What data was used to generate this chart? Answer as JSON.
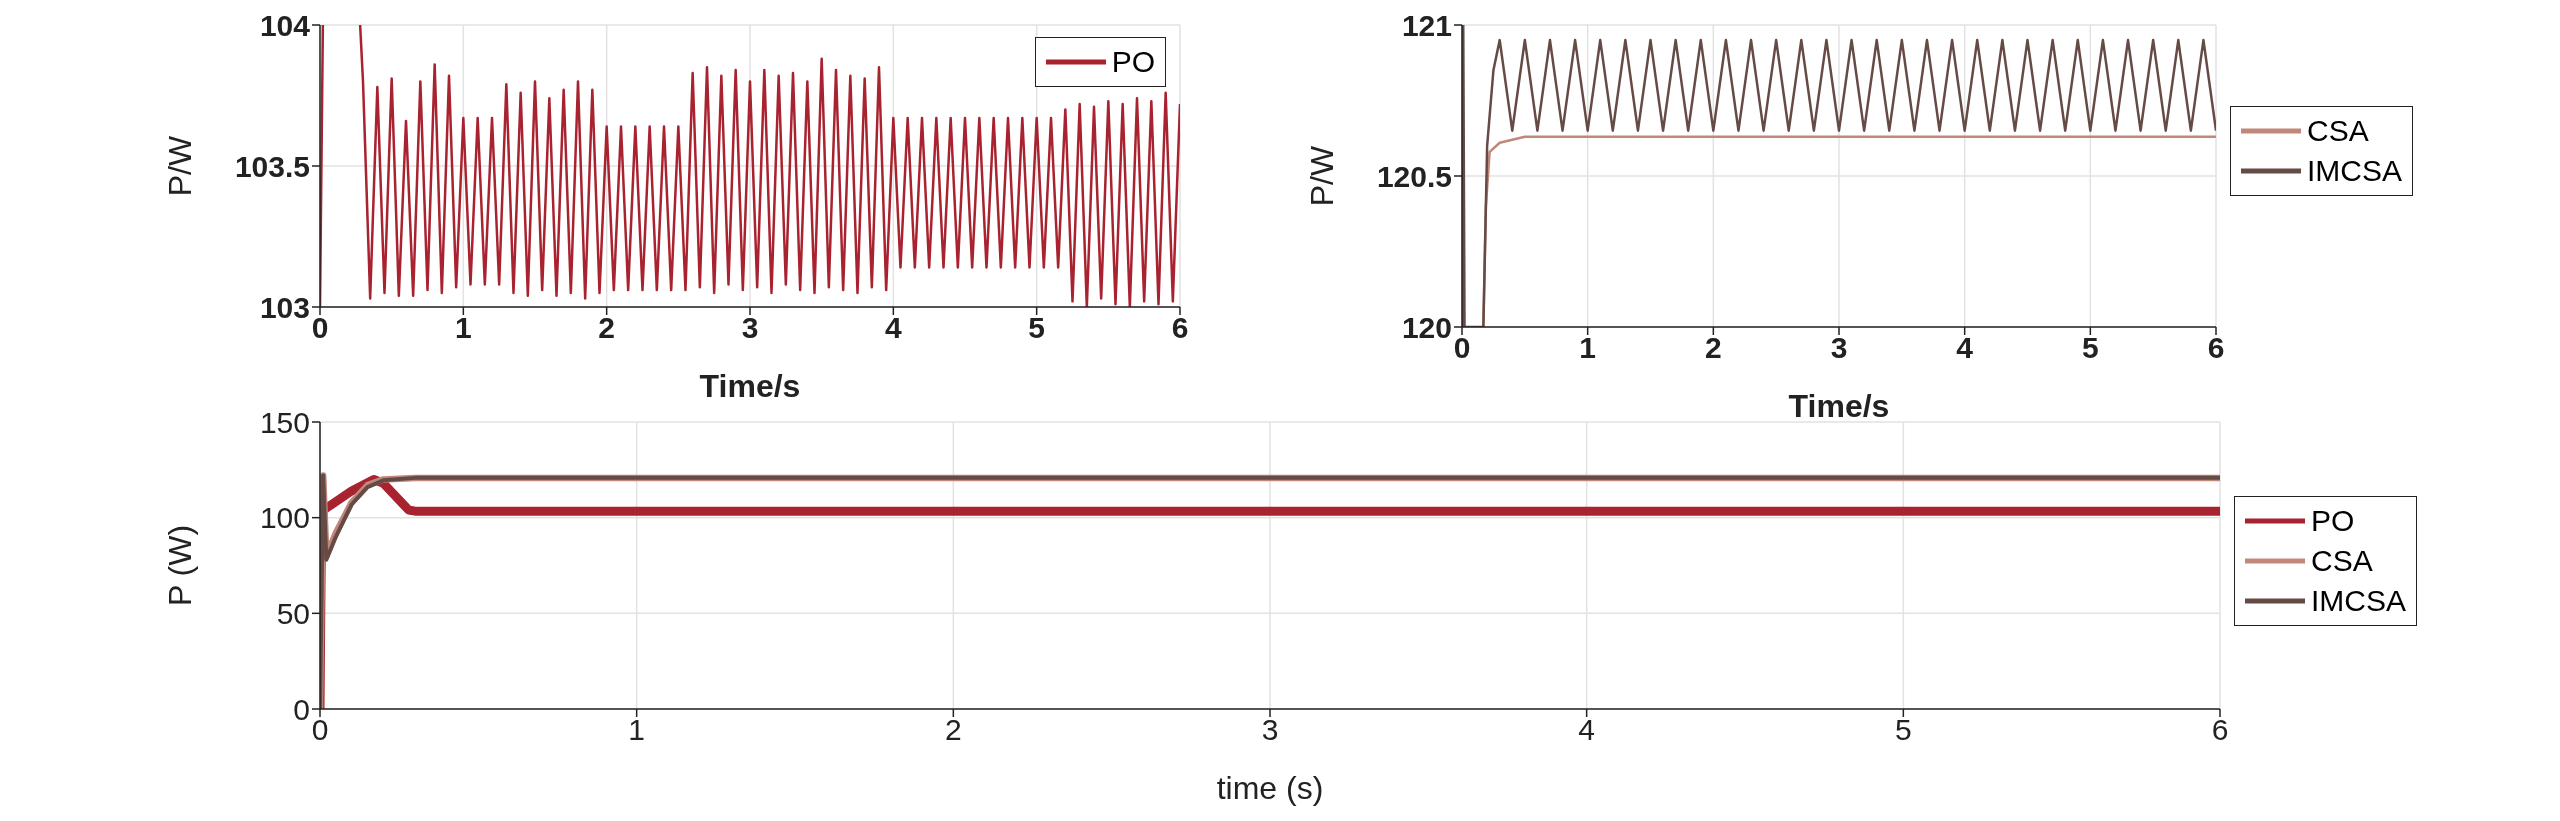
{
  "chart_data": [
    {
      "type": "line",
      "xlabel": "Time/s",
      "ylabel": "P/W",
      "xlim": [
        0,
        6
      ],
      "xticks": [
        0,
        1,
        2,
        3,
        4,
        5,
        6
      ],
      "ylim": [
        103,
        104
      ],
      "yticks": [
        103,
        103.5,
        104
      ],
      "grid": true,
      "legend": "top right",
      "series": [
        {
          "name": "PO",
          "color": "#a8232f",
          "x": [
            0,
            0.02,
            0.1,
            0.28,
            0.3,
            0.35,
            0.4,
            0.45,
            0.5,
            0.55,
            0.6,
            0.65,
            0.7,
            0.75,
            0.8,
            0.85,
            0.9,
            0.95,
            1.0,
            1.05,
            1.1,
            1.15,
            1.2,
            1.25,
            1.3,
            1.35,
            1.4,
            1.45,
            1.5,
            1.55,
            1.6,
            1.65,
            1.7,
            1.75,
            1.8,
            1.85,
            1.9,
            1.95,
            2.0,
            2.05,
            2.1,
            2.15,
            2.2,
            2.25,
            2.3,
            2.35,
            2.4,
            2.45,
            2.5,
            2.55,
            2.6,
            2.65,
            2.7,
            2.75,
            2.8,
            2.85,
            2.9,
            2.95,
            3.0,
            3.05,
            3.1,
            3.15,
            3.2,
            3.25,
            3.3,
            3.35,
            3.4,
            3.45,
            3.5,
            3.55,
            3.6,
            3.65,
            3.7,
            3.75,
            3.8,
            3.85,
            3.9,
            3.95,
            4.0,
            4.05,
            4.1,
            4.15,
            4.2,
            4.25,
            4.3,
            4.35,
            4.4,
            4.45,
            4.5,
            4.55,
            4.6,
            4.65,
            4.7,
            4.75,
            4.8,
            4.85,
            4.9,
            4.95,
            5.0,
            5.05,
            5.1,
            5.15,
            5.2,
            5.25,
            5.3,
            5.35,
            5.4,
            5.45,
            5.5,
            5.55,
            5.6,
            5.65,
            5.7,
            5.75,
            5.8,
            5.85,
            5.9,
            5.95,
            6.0
          ],
          "values": [
            103,
            104,
            null,
            104,
            103.8,
            103.03,
            103.78,
            103.05,
            103.81,
            103.04,
            103.66,
            103.04,
            103.8,
            103.06,
            103.86,
            103.05,
            103.82,
            103.07,
            103.67,
            103.08,
            103.67,
            103.08,
            103.67,
            103.08,
            103.79,
            103.05,
            103.76,
            103.04,
            103.8,
            103.06,
            103.74,
            103.04,
            103.77,
            103.05,
            103.8,
            103.03,
            103.77,
            103.05,
            103.64,
            103.06,
            103.64,
            103.06,
            103.64,
            103.06,
            103.64,
            103.06,
            103.64,
            103.06,
            103.64,
            103.06,
            103.83,
            103.07,
            103.85,
            103.05,
            103.82,
            103.08,
            103.84,
            103.06,
            103.8,
            103.07,
            103.84,
            103.05,
            103.82,
            103.08,
            103.83,
            103.06,
            103.8,
            103.05,
            103.88,
            103.07,
            103.84,
            103.06,
            103.82,
            103.05,
            103.81,
            103.07,
            103.85,
            103.06,
            103.67,
            103.14,
            103.67,
            103.14,
            103.67,
            103.14,
            103.67,
            103.14,
            103.67,
            103.14,
            103.67,
            103.14,
            103.67,
            103.14,
            103.67,
            103.14,
            103.67,
            103.14,
            103.67,
            103.14,
            103.67,
            103.14,
            103.67,
            103.14,
            103.7,
            103.02,
            103.72,
            103.0,
            103.71,
            103.03,
            103.73,
            103.01,
            103.72,
            103.0,
            103.74,
            103.02,
            103.73,
            103.01,
            103.76,
            103.02,
            103.72
          ]
        }
      ]
    },
    {
      "type": "line",
      "xlabel": "Time/s",
      "ylabel": "P/W",
      "xlim": [
        0,
        6
      ],
      "xticks": [
        0,
        1,
        2,
        3,
        4,
        5,
        6
      ],
      "ylim": [
        120,
        121
      ],
      "yticks": [
        120,
        120.5,
        121
      ],
      "grid": true,
      "legend": "right",
      "series": [
        {
          "name": "CSA",
          "color": "#c0877a",
          "x": [
            0.17,
            0.19,
            0.22,
            0.3,
            0.5,
            6.0
          ],
          "values": [
            120,
            120.4,
            120.58,
            120.61,
            120.63,
            120.63
          ]
        },
        {
          "name": "IMCSA",
          "color": "#654a45",
          "x": [
            0,
            0.01,
            0.02,
            0.17,
            0.2,
            0.25,
            0.3,
            0.4,
            0.5,
            0.6,
            0.7,
            0.8,
            0.9,
            1.0,
            1.1,
            1.2,
            1.3,
            1.4,
            1.5,
            1.6,
            1.7,
            1.8,
            1.9,
            2.0,
            2.1,
            2.2,
            2.3,
            2.4,
            2.5,
            2.6,
            2.7,
            2.8,
            2.9,
            3.0,
            3.1,
            3.2,
            3.3,
            3.4,
            3.5,
            3.6,
            3.7,
            3.8,
            3.9,
            4.0,
            4.1,
            4.2,
            4.3,
            4.4,
            4.5,
            4.6,
            4.7,
            4.8,
            4.9,
            5.0,
            5.1,
            5.2,
            5.3,
            5.4,
            5.5,
            5.6,
            5.7,
            5.8,
            5.9,
            6.0
          ],
          "values": [
            120,
            121,
            120,
            120,
            120.6,
            120.85,
            120.95,
            120.65,
            120.95,
            120.65,
            120.95,
            120.65,
            120.95,
            120.65,
            120.95,
            120.65,
            120.95,
            120.65,
            120.95,
            120.65,
            120.95,
            120.65,
            120.95,
            120.65,
            120.95,
            120.65,
            120.95,
            120.65,
            120.95,
            120.65,
            120.95,
            120.65,
            120.95,
            120.65,
            120.95,
            120.65,
            120.95,
            120.65,
            120.95,
            120.65,
            120.95,
            120.65,
            120.95,
            120.65,
            120.95,
            120.65,
            120.95,
            120.65,
            120.95,
            120.65,
            120.95,
            120.65,
            120.95,
            120.65,
            120.95,
            120.65,
            120.95,
            120.65,
            120.95,
            120.65,
            120.95,
            120.65,
            120.95,
            120.65
          ]
        }
      ]
    },
    {
      "type": "line",
      "xlabel": "time (s)",
      "ylabel": "P (W)",
      "xlim": [
        0,
        6
      ],
      "xticks": [
        0,
        1,
        2,
        3,
        4,
        5,
        6
      ],
      "ylim": [
        0,
        150
      ],
      "yticks": [
        0,
        50,
        100,
        150
      ],
      "grid": true,
      "legend": "right",
      "series": [
        {
          "name": "PO",
          "color": "#a8232f",
          "x": [
            0,
            0.005,
            0.02,
            0.1,
            0.17,
            0.2,
            0.28,
            0.3,
            6.0
          ],
          "values": [
            0,
            103,
            105,
            114,
            120,
            118,
            104,
            103.4,
            103.4
          ]
        },
        {
          "name": "CSA",
          "color": "#c0877a",
          "x": [
            0,
            0.01,
            0.02,
            0.05,
            0.1,
            0.15,
            0.2,
            0.3,
            6.0
          ],
          "values": [
            0,
            122,
            80,
            92,
            108,
            117,
            120,
            120.7,
            120.7
          ]
        },
        {
          "name": "IMCSA",
          "color": "#654a45",
          "x": [
            0,
            0.01,
            0.02,
            0.05,
            0.1,
            0.15,
            0.2,
            0.3,
            6.0
          ],
          "values": [
            0,
            122,
            78,
            90,
            107,
            116,
            119.5,
            120.8,
            120.8
          ]
        }
      ]
    }
  ]
}
